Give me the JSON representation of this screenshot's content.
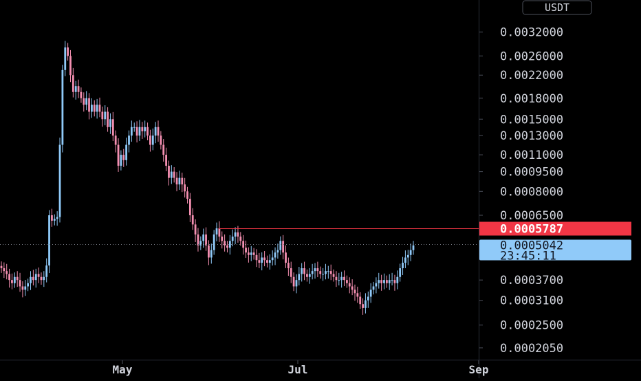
{
  "chart_data": {
    "type": "candlestick",
    "title": "",
    "currency_label": "USDT",
    "price_scale": "log",
    "ylim": [
      0.000185,
      0.00423
    ],
    "y_ticks": [
      "0.0032000",
      "0.0026000",
      "0.0022000",
      "0.0018000",
      "0.0015000",
      "0.0013000",
      "0.0011000",
      "0.0009500",
      "0.0008000",
      "0.0006500",
      "0.0003700",
      "0.0003100",
      "0.0002500",
      "0.0002050"
    ],
    "x_ticks": [
      "May",
      "Jul",
      "Sep"
    ],
    "reference_line": {
      "label": "0.0005787",
      "value": 0.0005787,
      "color": "#f23645"
    },
    "last_price": {
      "label": "0.0005042",
      "countdown": "23:45:11",
      "value": 0.0005042,
      "color": "#90caf9"
    },
    "up_color": "#90caf9",
    "down_color": "#f48fb1",
    "background_color": "#000000",
    "close_series": [
      0.00041,
      0.0004,
      0.00039,
      0.00037,
      0.00036,
      0.00038,
      0.00037,
      0.00035,
      0.00034,
      0.00035,
      0.00036,
      0.00038,
      0.00037,
      0.00039,
      0.00038,
      0.00037,
      0.00038,
      0.00042,
      0.00065,
      0.00062,
      0.00063,
      0.00064,
      0.0012,
      0.0023,
      0.0028,
      0.0026,
      0.0022,
      0.0019,
      0.002,
      0.0019,
      0.0018,
      0.0017,
      0.0018,
      0.0016,
      0.0017,
      0.0016,
      0.0017,
      0.0016,
      0.0015,
      0.0016,
      0.0014,
      0.0015,
      0.0013,
      0.0012,
      0.001,
      0.0011,
      0.00105,
      0.0012,
      0.0013,
      0.0014,
      0.0014,
      0.0013,
      0.0014,
      0.00135,
      0.0014,
      0.0013,
      0.0012,
      0.0013,
      0.0014,
      0.0013,
      0.0012,
      0.0011,
      0.001,
      0.0009,
      0.00095,
      0.0009,
      0.00085,
      0.0009,
      0.00085,
      0.0008,
      0.00075,
      0.00065,
      0.0006,
      0.00055,
      0.0005,
      0.00052,
      0.00055,
      0.0005,
      0.00045,
      0.00048,
      0.00055,
      0.00058,
      0.00054,
      0.00052,
      0.0005,
      0.00049,
      0.00052,
      0.00054,
      0.00056,
      0.00054,
      0.00052,
      0.00049,
      0.00047,
      0.00046,
      0.00047,
      0.00046,
      0.00044,
      0.00043,
      0.00045,
      0.00044,
      0.00043,
      0.00044,
      0.00045,
      0.00047,
      0.00048,
      0.00052,
      0.00047,
      0.00043,
      0.00041,
      0.00038,
      0.00035,
      0.00037,
      0.00039,
      0.00041,
      0.00039,
      0.00038,
      0.00039,
      0.0004,
      0.00041,
      0.0004,
      0.00039,
      0.00039,
      0.0004,
      0.0004,
      0.00039,
      0.00038,
      0.00037,
      0.00037,
      0.00038,
      0.00037,
      0.00036,
      0.00035,
      0.00034,
      0.00033,
      0.00032,
      0.0003,
      0.00029,
      0.00031,
      0.00032,
      0.00034,
      0.00035,
      0.00036,
      0.00037,
      0.00036,
      0.00037,
      0.00036,
      0.00037,
      0.00037,
      0.00036,
      0.00038,
      0.00041,
      0.00043,
      0.00045,
      0.00046,
      0.00048,
      0.0005
    ]
  }
}
